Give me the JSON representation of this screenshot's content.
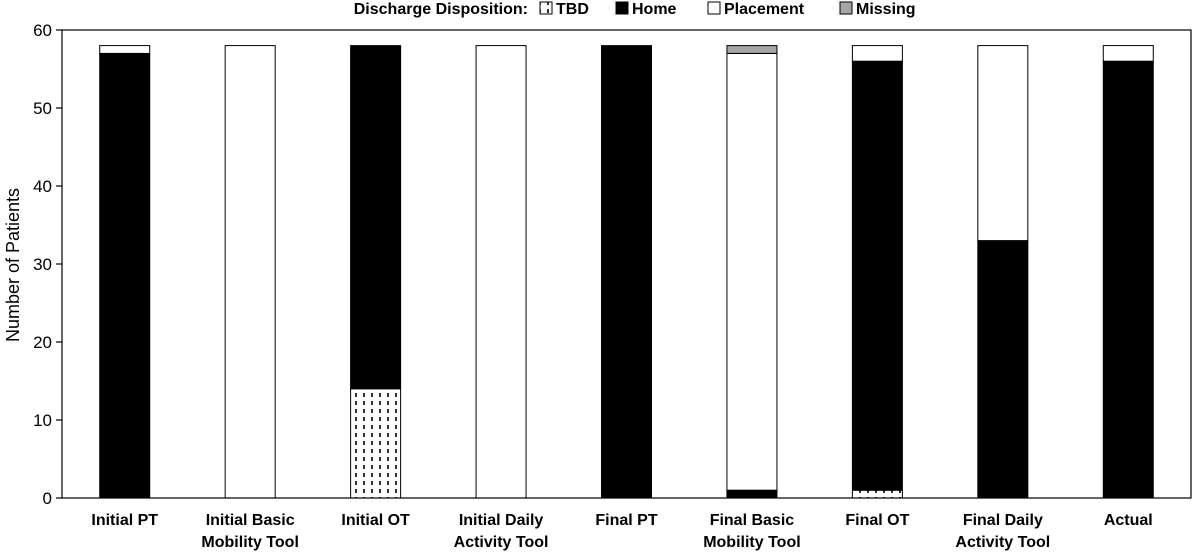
{
  "chart_data": {
    "type": "bar",
    "stacked": true,
    "ylabel": "Number of Patients",
    "ylim": [
      0,
      60
    ],
    "yticks": [
      0,
      10,
      20,
      30,
      40,
      50,
      60
    ],
    "legend": {
      "title": "Discharge Disposition:",
      "placement": "top-center",
      "entries": [
        "TBD",
        "Home",
        "Placement",
        "Missing"
      ]
    },
    "categories": [
      [
        "Initial PT"
      ],
      [
        "Initial Basic",
        "Mobility Tool"
      ],
      [
        "Initial OT"
      ],
      [
        "Initial Daily",
        "Activity Tool"
      ],
      [
        "Final PT"
      ],
      [
        "Final Basic",
        "Mobility Tool"
      ],
      [
        "Final OT"
      ],
      [
        "Final Daily",
        "Activity Tool"
      ],
      [
        "Actual"
      ]
    ],
    "series": [
      {
        "name": "TBD",
        "pattern": "dashed",
        "color": "#ffffff",
        "values": [
          0,
          0,
          14,
          0,
          0,
          0,
          1,
          0,
          0
        ]
      },
      {
        "name": "Home",
        "color": "#000000",
        "values": [
          57,
          0,
          44,
          0,
          58,
          1,
          55,
          33,
          56
        ]
      },
      {
        "name": "Placement",
        "color": "#ffffff",
        "values": [
          1,
          58,
          0,
          58,
          0,
          56,
          2,
          25,
          2
        ]
      },
      {
        "name": "Missing",
        "color": "#a6a6a6",
        "values": [
          0,
          0,
          0,
          0,
          0,
          1,
          0,
          0,
          0
        ]
      }
    ],
    "grid": false
  }
}
